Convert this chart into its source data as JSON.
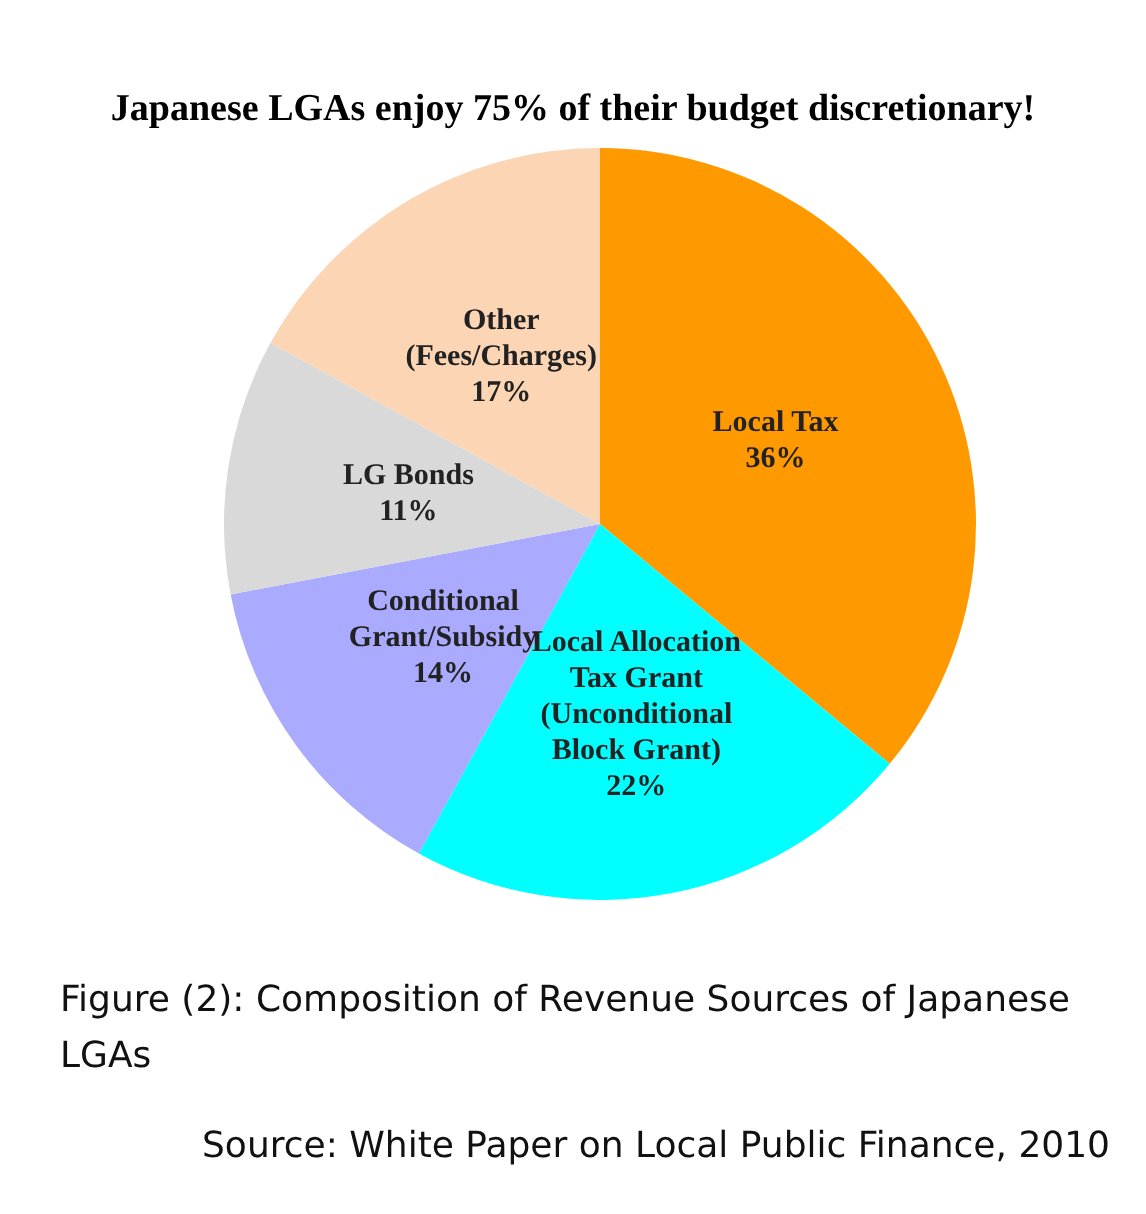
{
  "chart_data": {
    "type": "pie",
    "title": "Japanese LGAs enjoy 75% of their budget discretionary!",
    "categories": [
      "Local Tax",
      "Local Allocation\nTax Grant\n(Unconditional\nBlock Grant)",
      "Conditional\nGrant/Subsidy",
      "LG Bonds",
      "Other\n(Fees/Charges)"
    ],
    "values": [
      36,
      22,
      14,
      11,
      17
    ],
    "colors": [
      "#ff9900",
      "#00ffff",
      "#aaaaff",
      "#d9d9d9",
      "#fcd5b5"
    ],
    "value_labels": [
      "36%",
      "22%",
      "14%",
      "11%",
      "17%"
    ],
    "annotations": [
      "Figure (2): Composition of Revenue Sources of Japanese\nLGAs",
      "Source: White Paper on Local Public Finance, 2010"
    ]
  }
}
